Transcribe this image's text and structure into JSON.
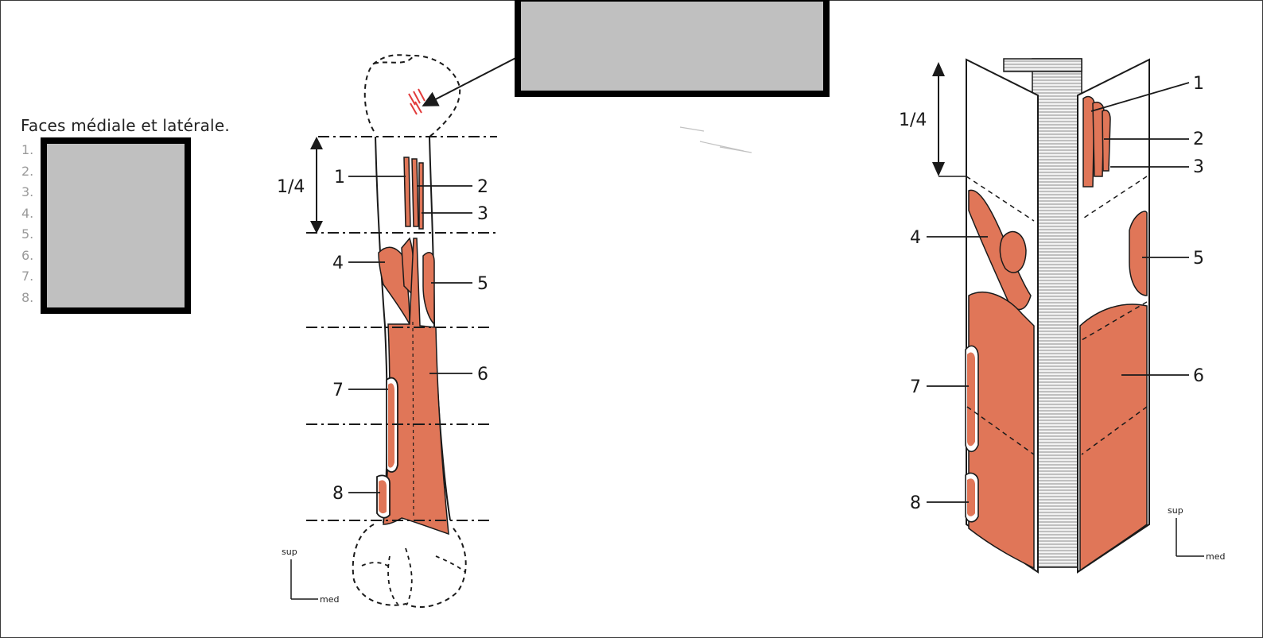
{
  "heading": "Faces médiale et latérale.",
  "answer_list": [
    "1.",
    "2.",
    "3.",
    "4.",
    "5.",
    "6.",
    "7.",
    "8."
  ],
  "left_figure": {
    "fraction_label": "1/4",
    "callouts": [
      "1",
      "2",
      "3",
      "4",
      "5",
      "6",
      "7",
      "8"
    ],
    "orientation": {
      "up": "sup",
      "side": "med"
    }
  },
  "right_figure": {
    "fraction_label": "1/4",
    "callouts": [
      "1",
      "2",
      "3",
      "4",
      "5",
      "6",
      "7",
      "8"
    ],
    "orientation": {
      "up": "sup",
      "side": "med"
    }
  },
  "colors": {
    "muscle_fill": "#e07658",
    "outline": "#1a1a1a",
    "redaction_fill": "#c0c0c0",
    "redaction_border": "#000000",
    "list_number": "#9a9a9a"
  }
}
